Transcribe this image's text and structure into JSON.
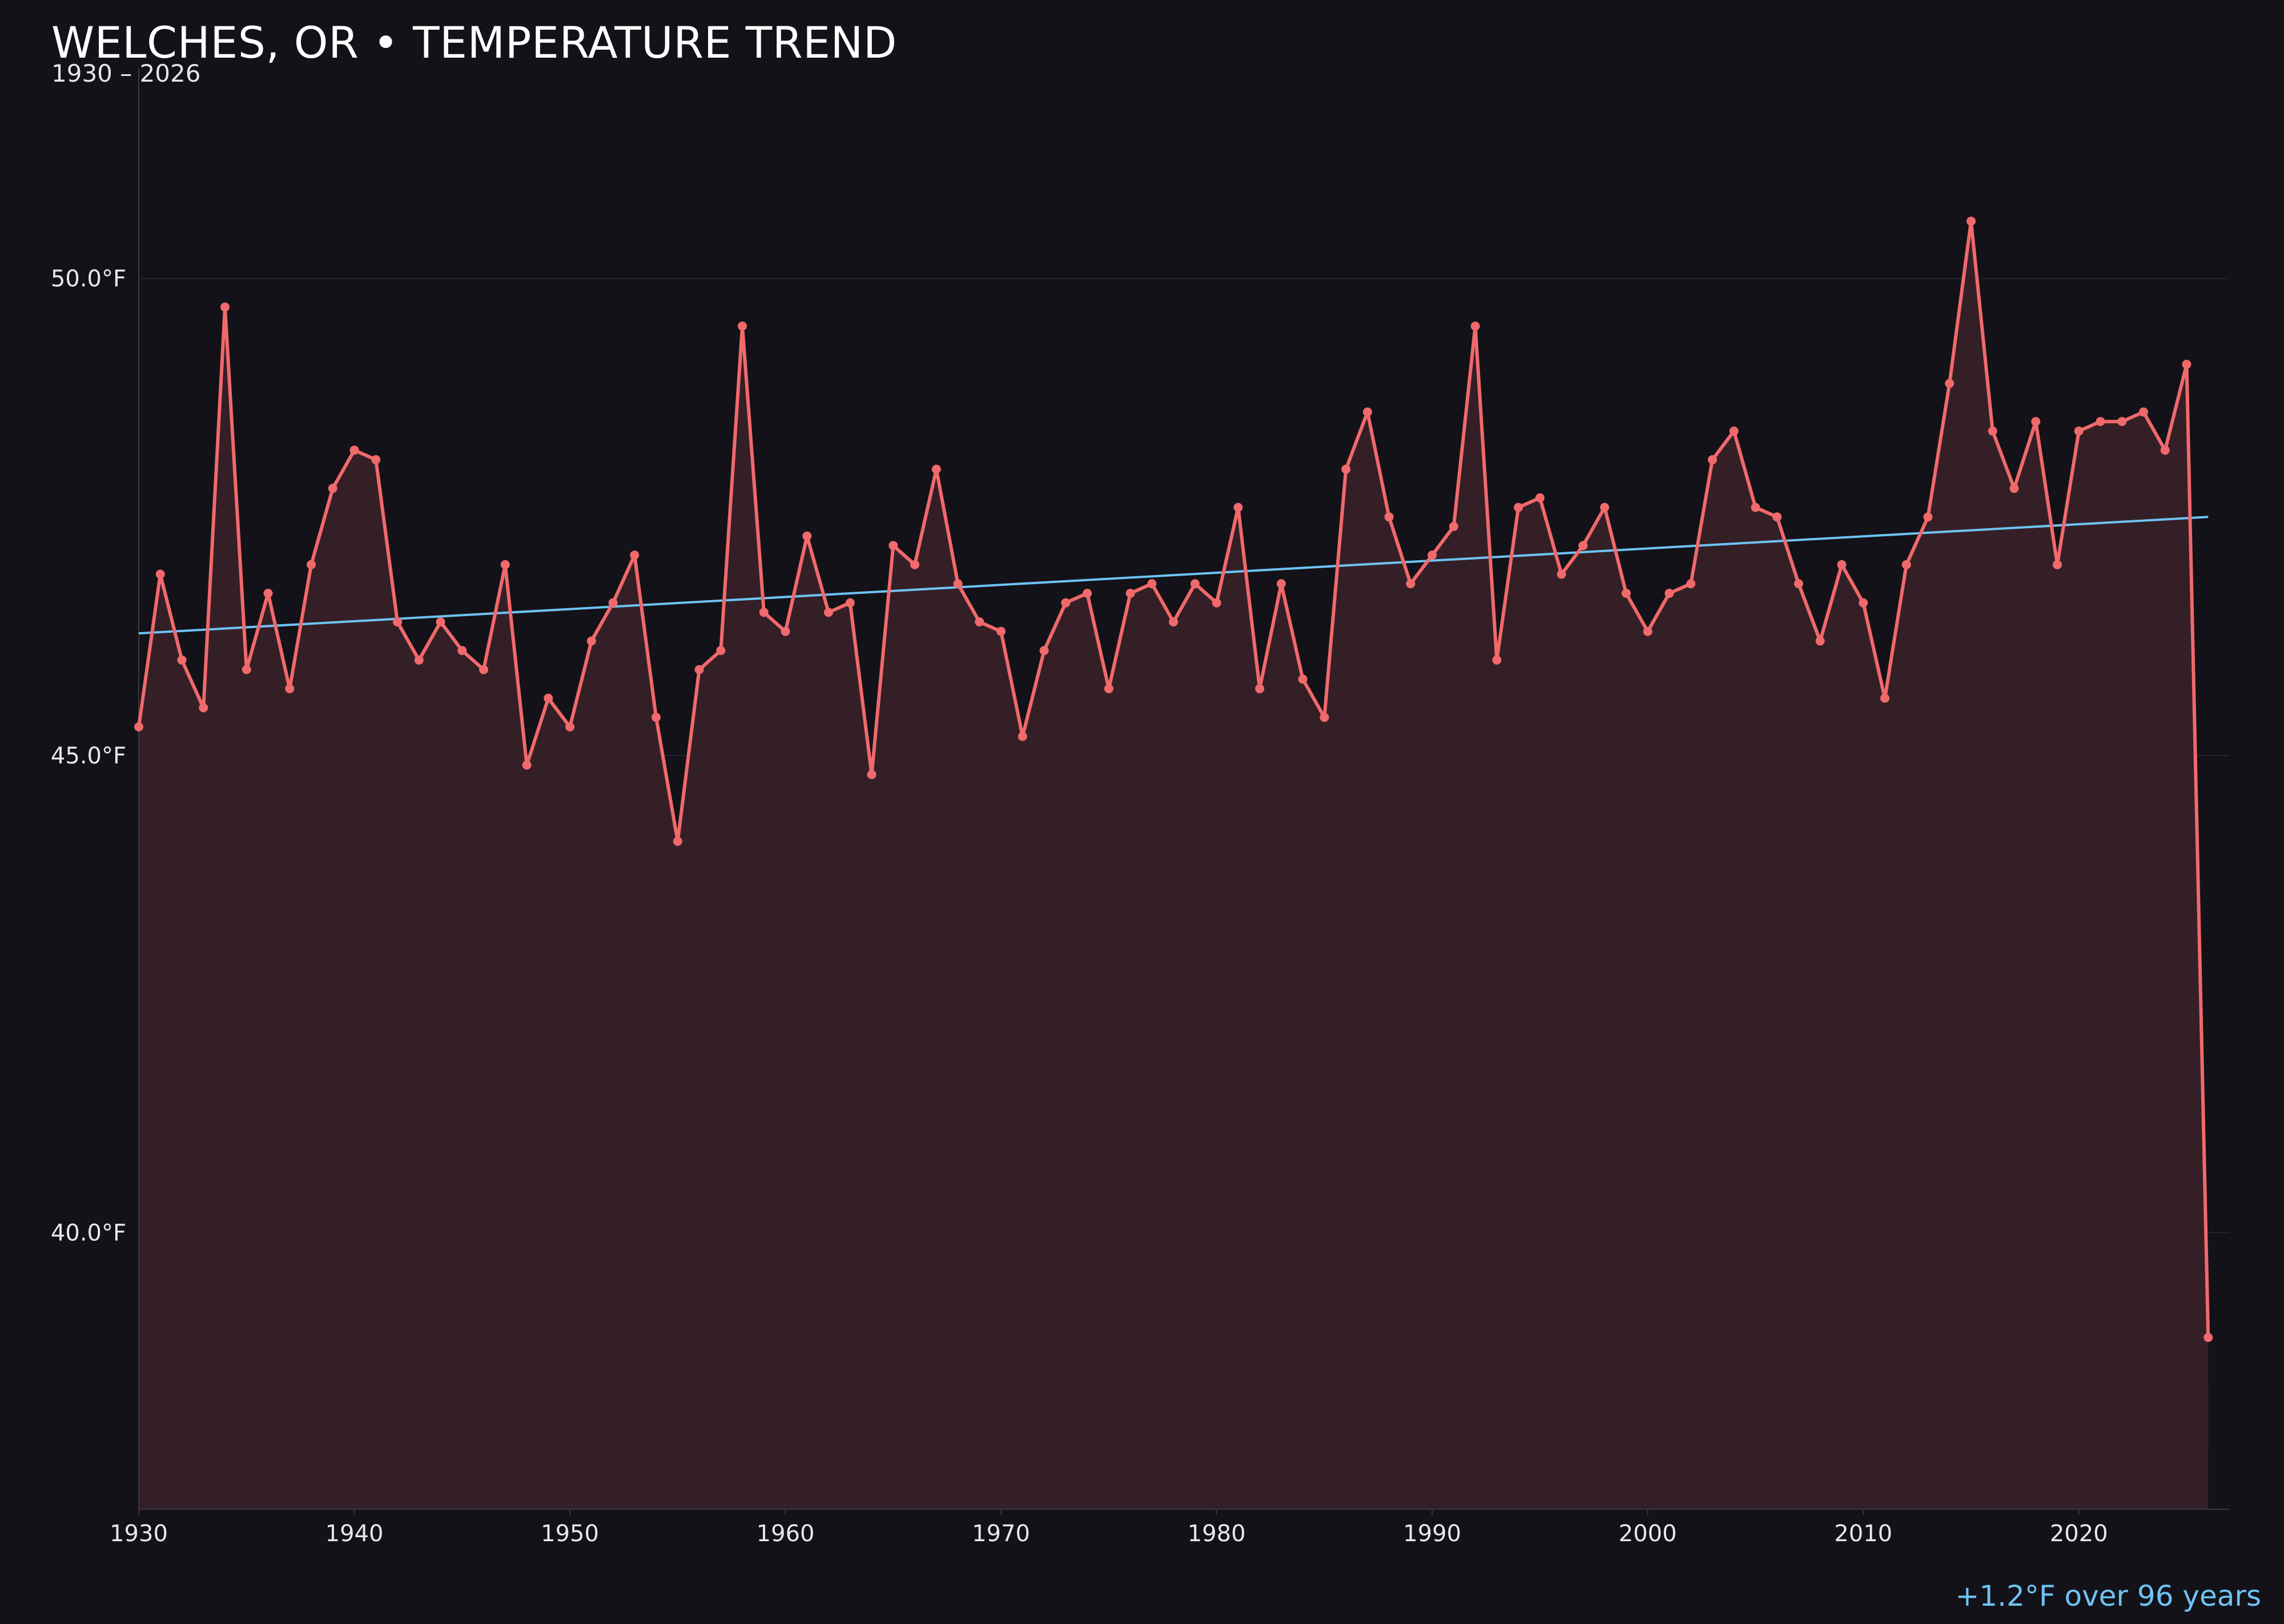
{
  "header": {
    "title": "WELCHES, OR • TEMPERATURE TREND",
    "subtitle": "1930 – 2026"
  },
  "footer": {
    "trend_note": "+1.2°F over 96 years"
  },
  "colors": {
    "background": "#131218",
    "series": "#f0696b",
    "area_fill": "#341f26",
    "trend": "#6ec3f4",
    "grid": "#26232b",
    "axis": "#3a3740",
    "tick_text": "#e8e8e8"
  },
  "chart_data": {
    "type": "line",
    "title": "WELCHES, OR • TEMPERATURE TREND",
    "subtitle": "1930 – 2026",
    "xlim": [
      1930,
      2027
    ],
    "ylim": [
      37.1,
      52.2
    ],
    "x_ticks": [
      1930,
      1940,
      1950,
      1960,
      1970,
      1980,
      1990,
      2000,
      2010,
      2020
    ],
    "y_ticks": [
      40.0,
      45.0,
      50.0
    ],
    "y_tick_labels": [
      "40.0°F",
      "45.0°F",
      "50.0°F"
    ],
    "grid": "horizontal",
    "area_fill": true,
    "series": [
      {
        "x": [
          1930,
          1931,
          1932,
          1933,
          1934,
          1935,
          1936,
          1937,
          1938,
          1939,
          1940,
          1941,
          1942,
          1943,
          1944,
          1945,
          1946,
          1947,
          1948,
          1949,
          1950,
          1951,
          1952,
          1953,
          1954,
          1955,
          1956,
          1957,
          1958,
          1959,
          1960,
          1961,
          1962,
          1963,
          1964,
          1965,
          1966,
          1967,
          1968,
          1969,
          1970,
          1971,
          1972,
          1973,
          1974,
          1975,
          1976,
          1977,
          1978,
          1979,
          1980,
          1981,
          1982,
          1983,
          1984,
          1985,
          1986,
          1987,
          1988,
          1989,
          1990,
          1991,
          1992,
          1993,
          1994,
          1995,
          1996,
          1997,
          1998,
          1999,
          2000,
          2001,
          2002,
          2003,
          2004,
          2005,
          2006,
          2007,
          2008,
          2009,
          2010,
          2011,
          2012,
          2013,
          2014,
          2015,
          2016,
          2017,
          2018,
          2019,
          2020,
          2021,
          2022,
          2023,
          2024,
          2025,
          2026
        ],
        "values": [
          45.3,
          46.9,
          46.0,
          45.5,
          49.7,
          45.9,
          46.7,
          45.7,
          47.0,
          47.8,
          48.2,
          48.1,
          46.4,
          46.0,
          46.4,
          46.1,
          45.9,
          47.0,
          44.9,
          45.6,
          45.3,
          46.2,
          46.6,
          47.1,
          45.4,
          44.1,
          45.9,
          46.1,
          49.5,
          46.5,
          46.3,
          47.3,
          46.5,
          46.6,
          44.8,
          47.2,
          47.0,
          48.0,
          46.8,
          46.4,
          46.3,
          45.2,
          46.1,
          46.6,
          46.7,
          45.7,
          46.7,
          46.8,
          46.4,
          46.8,
          46.6,
          47.6,
          45.7,
          46.8,
          45.8,
          45.4,
          48.0,
          48.6,
          47.5,
          46.8,
          47.1,
          47.4,
          49.5,
          46.0,
          47.6,
          47.7,
          46.9,
          47.2,
          47.6,
          46.7,
          46.3,
          46.7,
          46.8,
          48.1,
          48.4,
          47.6,
          47.5,
          46.8,
          46.2,
          47.0,
          46.6,
          45.6,
          47.0,
          47.5,
          48.9,
          50.6,
          48.4,
          47.8,
          48.5,
          47.0,
          48.4,
          48.5,
          48.5,
          48.6,
          48.2,
          49.1,
          38.9
        ]
      }
    ],
    "trend": {
      "start": {
        "x": 1930,
        "y": 46.28
      },
      "end": {
        "x": 2026,
        "y": 47.5
      }
    }
  }
}
